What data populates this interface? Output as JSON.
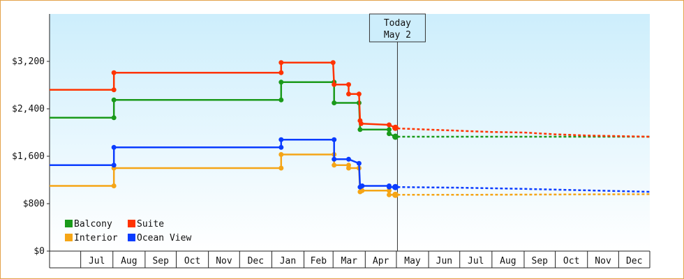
{
  "chart_data": {
    "type": "line",
    "step": true,
    "y_unit_prefix": "$",
    "ylim": [
      0,
      4000
    ],
    "y_ticks": [
      {
        "value": 0,
        "label": "$0"
      },
      {
        "value": 800,
        "label": "$800"
      },
      {
        "value": 1600,
        "label": "$1,600"
      },
      {
        "value": 2400,
        "label": "$2,400"
      },
      {
        "value": 3200,
        "label": "$3,200"
      }
    ],
    "x_range": [
      "2025-06-01",
      "2026-12-31"
    ],
    "x_ticks": [
      "Jul",
      "Aug",
      "Sep",
      "Oct",
      "Nov",
      "Dec",
      "Jan",
      "Feb",
      "Mar",
      "Apr",
      "May",
      "Jun",
      "Jul",
      "Aug",
      "Sep",
      "Oct",
      "Nov",
      "Dec"
    ],
    "x_tick_dates": [
      "2025-07-01",
      "2025-08-01",
      "2025-09-01",
      "2025-10-01",
      "2025-11-01",
      "2025-12-01",
      "2026-01-01",
      "2026-02-01",
      "2026-03-01",
      "2026-04-01",
      "2026-05-01",
      "2026-06-01",
      "2026-07-01",
      "2026-08-01",
      "2026-09-01",
      "2026-10-01",
      "2026-11-01",
      "2026-12-01"
    ],
    "today": {
      "date": "2026-05-02",
      "label_line1": "Today",
      "label_line2": "May 2"
    },
    "legend": {
      "placement": "bottom-left",
      "order": [
        "Balcony",
        "Suite",
        "Interior",
        "Ocean View"
      ]
    },
    "grid": false,
    "series": [
      {
        "name": "Balcony",
        "color": "#1a9a1a",
        "points": [
          {
            "x": "2025-06-01",
            "y": 2250
          },
          {
            "x": "2025-08-02",
            "y": 2250
          },
          {
            "x": "2025-08-02",
            "y": 2550
          },
          {
            "x": "2026-01-10",
            "y": 2550
          },
          {
            "x": "2026-01-10",
            "y": 2850
          },
          {
            "x": "2026-03-02",
            "y": 2850
          },
          {
            "x": "2026-03-02",
            "y": 2500
          },
          {
            "x": "2026-03-26",
            "y": 2500
          },
          {
            "x": "2026-03-27",
            "y": 2050
          },
          {
            "x": "2026-04-24",
            "y": 2050
          },
          {
            "x": "2026-04-24",
            "y": 1980
          },
          {
            "x": "2026-04-30",
            "y": 1930
          }
        ],
        "forecast": [
          {
            "x": "2026-05-02",
            "y": 1930
          },
          {
            "x": "2026-12-31",
            "y": 1930
          }
        ]
      },
      {
        "name": "Suite",
        "color": "#ff3300",
        "points": [
          {
            "x": "2025-06-01",
            "y": 2720
          },
          {
            "x": "2025-08-02",
            "y": 2720
          },
          {
            "x": "2025-08-02",
            "y": 3010
          },
          {
            "x": "2026-01-10",
            "y": 3010
          },
          {
            "x": "2026-01-10",
            "y": 3180
          },
          {
            "x": "2026-03-01",
            "y": 3180
          },
          {
            "x": "2026-03-02",
            "y": 2810
          },
          {
            "x": "2026-03-16",
            "y": 2810
          },
          {
            "x": "2026-03-16",
            "y": 2650
          },
          {
            "x": "2026-03-26",
            "y": 2650
          },
          {
            "x": "2026-03-27",
            "y": 2200
          },
          {
            "x": "2026-03-28",
            "y": 2150
          },
          {
            "x": "2026-04-24",
            "y": 2130
          },
          {
            "x": "2026-04-30",
            "y": 2080
          }
        ],
        "forecast": [
          {
            "x": "2026-05-02",
            "y": 2070
          },
          {
            "x": "2026-06-01",
            "y": 2050
          },
          {
            "x": "2026-07-01",
            "y": 2030
          },
          {
            "x": "2026-08-01",
            "y": 2010
          },
          {
            "x": "2026-09-01",
            "y": 2000
          },
          {
            "x": "2026-10-01",
            "y": 1970
          },
          {
            "x": "2026-11-01",
            "y": 1950
          },
          {
            "x": "2026-12-31",
            "y": 1930
          }
        ]
      },
      {
        "name": "Interior",
        "color": "#f5a516",
        "points": [
          {
            "x": "2025-06-01",
            "y": 1100
          },
          {
            "x": "2025-08-02",
            "y": 1100
          },
          {
            "x": "2025-08-02",
            "y": 1400
          },
          {
            "x": "2026-01-10",
            "y": 1400
          },
          {
            "x": "2026-01-10",
            "y": 1630
          },
          {
            "x": "2026-03-02",
            "y": 1630
          },
          {
            "x": "2026-03-02",
            "y": 1450
          },
          {
            "x": "2026-03-16",
            "y": 1450
          },
          {
            "x": "2026-03-16",
            "y": 1400
          },
          {
            "x": "2026-03-26",
            "y": 1400
          },
          {
            "x": "2026-03-27",
            "y": 1000
          },
          {
            "x": "2026-03-29",
            "y": 1020
          },
          {
            "x": "2026-04-24",
            "y": 1020
          },
          {
            "x": "2026-04-24",
            "y": 950
          },
          {
            "x": "2026-04-30",
            "y": 950
          }
        ],
        "forecast": [
          {
            "x": "2026-05-02",
            "y": 950
          },
          {
            "x": "2026-07-01",
            "y": 950
          },
          {
            "x": "2026-12-31",
            "y": 960
          }
        ]
      },
      {
        "name": "Ocean View",
        "color": "#0a3cff",
        "points": [
          {
            "x": "2025-06-01",
            "y": 1450
          },
          {
            "x": "2025-08-02",
            "y": 1450
          },
          {
            "x": "2025-08-02",
            "y": 1750
          },
          {
            "x": "2026-01-10",
            "y": 1750
          },
          {
            "x": "2026-01-10",
            "y": 1880
          },
          {
            "x": "2026-03-02",
            "y": 1880
          },
          {
            "x": "2026-03-02",
            "y": 1550
          },
          {
            "x": "2026-03-16",
            "y": 1550
          },
          {
            "x": "2026-03-26",
            "y": 1480
          },
          {
            "x": "2026-03-27",
            "y": 1080
          },
          {
            "x": "2026-03-29",
            "y": 1100
          },
          {
            "x": "2026-04-24",
            "y": 1100
          },
          {
            "x": "2026-04-24",
            "y": 1080
          },
          {
            "x": "2026-04-30",
            "y": 1080
          }
        ],
        "forecast": [
          {
            "x": "2026-05-02",
            "y": 1080
          },
          {
            "x": "2026-07-01",
            "y": 1070
          },
          {
            "x": "2026-09-01",
            "y": 1050
          },
          {
            "x": "2026-12-31",
            "y": 1000
          }
        ]
      }
    ]
  },
  "colors": {
    "frame": "#e3a24a",
    "plot_top": "#cdeefc",
    "plot_bottom": "#ffffff"
  }
}
